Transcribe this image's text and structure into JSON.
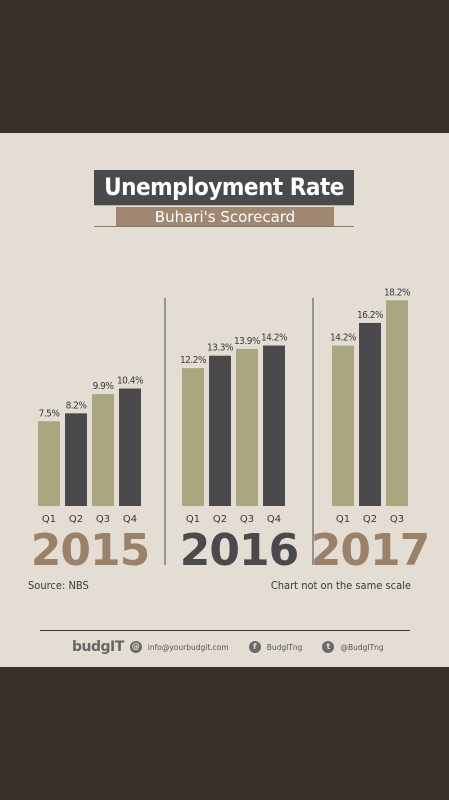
{
  "title": "Unemployment Rate",
  "subtitle": "Buhari's Scorecard",
  "source": "Source: NBS",
  "note": "Chart not on the same scale",
  "footer": {
    "logo": "budgIT",
    "email": "info@yourbudgit.com",
    "facebook": "BudgITng",
    "twitter": "@BudgITng"
  },
  "colors": {
    "khaki": "#a9a77f",
    "dark": "#4a4a4c",
    "year_brown": "#9a826a",
    "year_dark": "#4a4a4c"
  },
  "icons": [
    "mail-icon",
    "facebook-icon",
    "twitter-icon"
  ],
  "chart_data": [
    {
      "type": "bar",
      "title": "2015",
      "categories": [
        "Q1",
        "Q2",
        "Q3",
        "Q4"
      ],
      "values": [
        7.5,
        8.2,
        9.9,
        10.4
      ],
      "labels": [
        "7.5%",
        "8.2%",
        "9.9%",
        "10.4%"
      ]
    },
    {
      "type": "bar",
      "title": "2016",
      "categories": [
        "Q1",
        "Q2",
        "Q3",
        "Q4"
      ],
      "values": [
        12.2,
        13.3,
        13.9,
        14.2
      ],
      "labels": [
        "12.2%",
        "13.3%",
        "13.9%",
        "14.2%"
      ]
    },
    {
      "type": "bar",
      "title": "2017",
      "categories": [
        "Q1",
        "Q2",
        "Q3"
      ],
      "values": [
        14.2,
        16.2,
        18.2
      ],
      "labels": [
        "14.2%",
        "16.2%",
        "18.2%"
      ]
    }
  ]
}
